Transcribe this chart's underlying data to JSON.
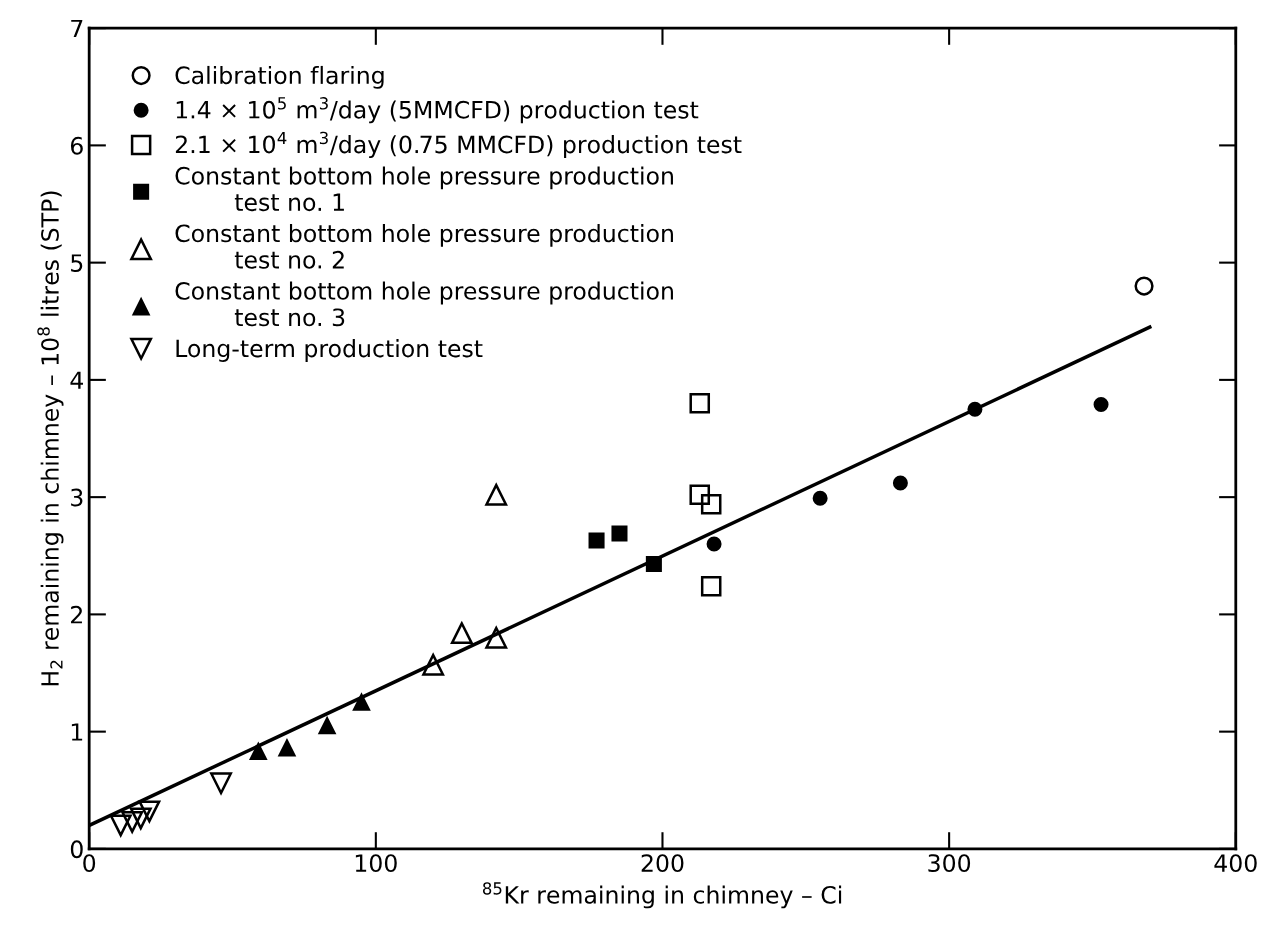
{
  "chart_data": {
    "type": "scatter",
    "xlabel": "$^{85}$Kr remaining in chimney – Ci",
    "ylabel": "H$_{2}$ remaining in chimney – 10$^{8}$ litres (STP)",
    "xlim": [
      0,
      400
    ],
    "ylim": [
      0,
      7
    ],
    "xticks": [
      0,
      100,
      200,
      300,
      400
    ],
    "yticks": [
      0,
      1,
      2,
      3,
      4,
      5,
      6,
      7
    ],
    "grid": false,
    "legend": "top left",
    "series": [
      {
        "name": "Calibration flaring",
        "color": "#000000",
        "marker": "circle-open",
        "x": [
          368
        ],
        "values": [
          4.8
        ]
      },
      {
        "name": "1.4 × 10$^{5}$ m$^{3}$/day (5MMCFD) production test",
        "color": "#000000",
        "marker": "circle",
        "x": [
          218,
          255,
          283,
          309,
          353
        ],
        "values": [
          2.6,
          2.99,
          3.12,
          3.75,
          3.79
        ]
      },
      {
        "name": "2.1 × 10$^{4}$ m$^{3}$/day (0.75 MMCFD) production test",
        "color": "#000000",
        "marker": "square-open",
        "x": [
          213,
          213,
          217,
          217
        ],
        "values": [
          3.8,
          3.02,
          2.94,
          2.24
        ]
      },
      {
        "name": "Constant bottom hole pressure production\n        test no. 1",
        "color": "#000000",
        "marker": "square",
        "x": [
          177,
          185,
          197
        ],
        "values": [
          2.63,
          2.69,
          2.43
        ]
      },
      {
        "name": "Constant bottom hole pressure production\n        test no. 2",
        "color": "#000000",
        "marker": "triangle-open",
        "x": [
          120,
          130,
          142,
          142
        ],
        "values": [
          1.57,
          1.84,
          1.8,
          3.02
        ]
      },
      {
        "name": "Constant bottom hole pressure production\n        test no. 3",
        "color": "#000000",
        "marker": "triangle",
        "x": [
          59,
          69,
          83,
          95
        ],
        "values": [
          0.83,
          0.86,
          1.05,
          1.25
        ]
      },
      {
        "name": "Long-term production test",
        "color": "#000000",
        "marker": "triangle-down-open",
        "x": [
          11,
          15,
          18,
          21,
          46
        ],
        "values": [
          0.2,
          0.23,
          0.26,
          0.32,
          0.56
        ]
      },
      {
        "type": "line",
        "color": "#000000",
        "line_style": "solid",
        "x": [
          0,
          370
        ],
        "values": [
          0.2,
          4.45
        ]
      }
    ]
  }
}
